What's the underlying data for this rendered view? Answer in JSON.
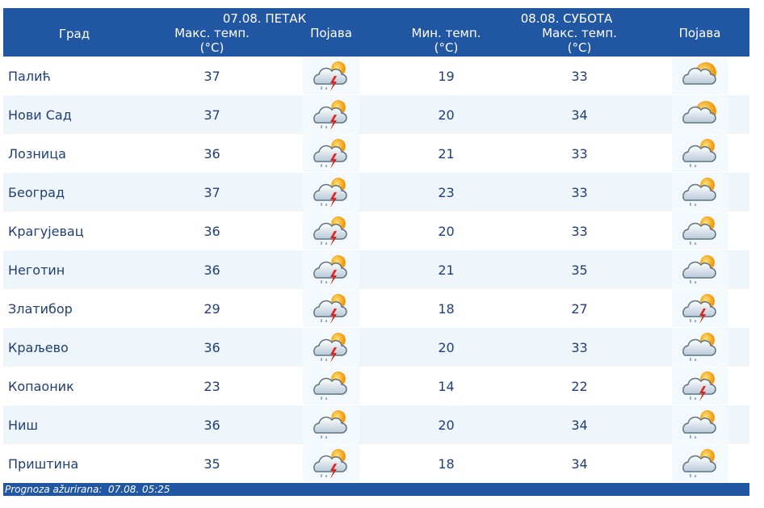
{
  "table": {
    "header": {
      "city": "Град",
      "day1": "07.08. ПЕТАК",
      "day2": "08.08. СУБОТА",
      "columns": [
        {
          "label": "Макс. темп.",
          "unit": "(°C)"
        },
        {
          "label": "Појава"
        },
        {
          "label": "Мин. темп.",
          "unit": "(°C)"
        },
        {
          "label": "Макс. темп.",
          "unit": "(°C)"
        },
        {
          "label": "Појава"
        }
      ]
    },
    "rows": [
      [
        "Палић",
        "37",
        "19",
        "33"
      ],
      [
        "Нови Сад",
        "37",
        "20",
        "34"
      ],
      [
        "Лозница",
        "36",
        "21",
        "33"
      ],
      [
        "Београд",
        "37",
        "23",
        "33"
      ],
      [
        "Крагујевац",
        "36",
        "20",
        "33"
      ],
      [
        "Неготин",
        "36",
        "21",
        "35"
      ],
      [
        "Златибор",
        "29",
        "18",
        "27"
      ],
      [
        "Краљево",
        "36",
        "20",
        "33"
      ],
      [
        "Копаоник",
        "23",
        "14",
        "22"
      ],
      [
        "Ниш",
        "36",
        "20",
        "34"
      ],
      [
        "Приштина",
        "35",
        "18",
        "34"
      ]
    ],
    "footer": "Prognoza ažurirana:  07.08. 05:25"
  }
}
